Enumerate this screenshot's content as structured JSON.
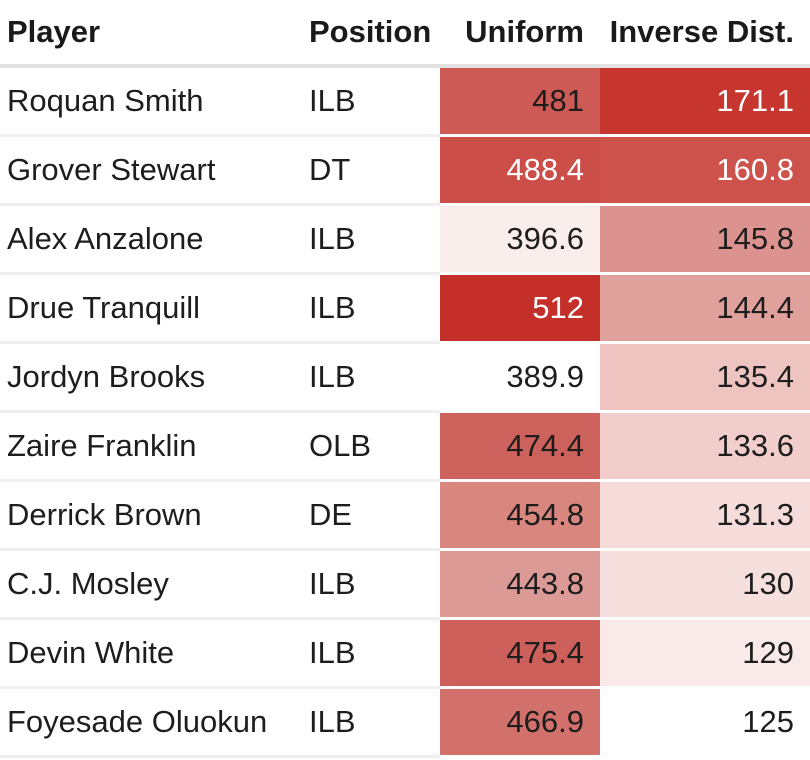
{
  "palette": {
    "background": "#ffffff",
    "header_text": "#1a1a1a",
    "cell_text_dark": "#1d1d1d",
    "cell_text_light": "#ffffff",
    "header_divider": "#e2e2e2",
    "row_divider": "#efefef"
  },
  "table": {
    "headers": [
      "Player",
      "Position",
      "Uniform",
      "Inverse Dist."
    ],
    "rows": [
      {
        "player": "Roquan Smith",
        "position": "ILB",
        "uniform": {
          "value": "481",
          "bg": "#cd5a54",
          "fg": "#1d1d1d"
        },
        "inverse": {
          "value": "171.1",
          "bg": "#c6362f",
          "fg": "#ffffff"
        }
      },
      {
        "player": "Grover Stewart",
        "position": "DT",
        "uniform": {
          "value": "488.4",
          "bg": "#cb4e48",
          "fg": "#ffffff"
        },
        "inverse": {
          "value": "160.8",
          "bg": "#cd524c",
          "fg": "#ffffff"
        }
      },
      {
        "player": "Alex Anzalone",
        "position": "ILB",
        "uniform": {
          "value": "396.6",
          "bg": "#faeeed",
          "fg": "#1d1d1d"
        },
        "inverse": {
          "value": "145.8",
          "bg": "#dc938f",
          "fg": "#1d1d1d"
        }
      },
      {
        "player": "Drue Tranquill",
        "position": "ILB",
        "uniform": {
          "value": "512",
          "bg": "#c43029",
          "fg": "#ffffff"
        },
        "inverse": {
          "value": "144.4",
          "bg": "#e0a09c",
          "fg": "#1d1d1d"
        }
      },
      {
        "player": "Jordyn Brooks",
        "position": "ILB",
        "uniform": {
          "value": "389.9",
          "bg": "#ffffff",
          "fg": "#1d1d1d"
        },
        "inverse": {
          "value": "135.4",
          "bg": "#eec4c1",
          "fg": "#1d1d1d"
        }
      },
      {
        "player": "Zaire Franklin",
        "position": "OLB",
        "uniform": {
          "value": "474.4",
          "bg": "#cd615b",
          "fg": "#1d1d1d"
        },
        "inverse": {
          "value": "133.6",
          "bg": "#f1cecc",
          "fg": "#1d1d1d"
        }
      },
      {
        "player": "Derrick Brown",
        "position": "DE",
        "uniform": {
          "value": "454.8",
          "bg": "#d9867f",
          "fg": "#1d1d1d"
        },
        "inverse": {
          "value": "131.3",
          "bg": "#f5dbd9",
          "fg": "#1d1d1d"
        }
      },
      {
        "player": "C.J. Mosley",
        "position": "ILB",
        "uniform": {
          "value": "443.8",
          "bg": "#dc9a96",
          "fg": "#1d1d1d"
        },
        "inverse": {
          "value": "130",
          "bg": "#f6e0de",
          "fg": "#1d1d1d"
        }
      },
      {
        "player": "Devin White",
        "position": "ILB",
        "uniform": {
          "value": "475.4",
          "bg": "#cd605a",
          "fg": "#1d1d1d"
        },
        "inverse": {
          "value": "129",
          "bg": "#f9e9e8",
          "fg": "#1d1d1d"
        }
      },
      {
        "player": "Foyesade Oluokun",
        "position": "ILB",
        "uniform": {
          "value": "466.9",
          "bg": "#d2716b",
          "fg": "#1d1d1d"
        },
        "inverse": {
          "value": "125",
          "bg": "#ffffff",
          "fg": "#1d1d1d"
        }
      }
    ]
  },
  "chart_data": {
    "type": "table",
    "columns": [
      "Player",
      "Position",
      "Uniform",
      "Inverse Dist."
    ],
    "rows": [
      [
        "Roquan Smith",
        "ILB",
        481,
        171.1
      ],
      [
        "Grover Stewart",
        "DT",
        488.4,
        160.8
      ],
      [
        "Alex Anzalone",
        "ILB",
        396.6,
        145.8
      ],
      [
        "Drue Tranquill",
        "ILB",
        512,
        144.4
      ],
      [
        "Jordyn Brooks",
        "ILB",
        389.9,
        135.4
      ],
      [
        "Zaire Franklin",
        "OLB",
        474.4,
        133.6
      ],
      [
        "Derrick Brown",
        "DE",
        454.8,
        131.3
      ],
      [
        "C.J. Mosley",
        "ILB",
        443.8,
        130
      ],
      [
        "Devin White",
        "ILB",
        475.4,
        129
      ],
      [
        "Foyesade Oluokun",
        "ILB",
        466.9,
        125
      ]
    ],
    "heatmap": {
      "shaded_columns": [
        "Uniform",
        "Inverse Dist."
      ],
      "scale": "white (low) to dark red (high), per column",
      "min_color": "#ffffff",
      "max_color": "#c43029",
      "light_text_on_dark_cells": true
    }
  }
}
